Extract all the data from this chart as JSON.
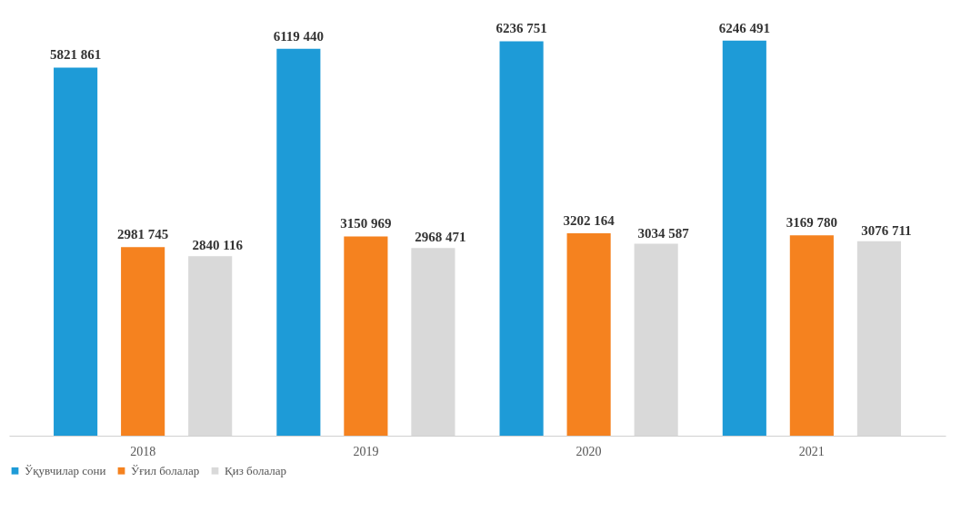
{
  "chart_data": {
    "type": "bar",
    "categories": [
      "2018",
      "2019",
      "2020",
      "2021"
    ],
    "series": [
      {
        "name": "Ўқувчилар сони",
        "color": "#1e9bd7",
        "values": [
          5821861,
          6119440,
          6236751,
          6246491
        ],
        "value_labels": [
          "5821 861",
          "6119 440",
          "6236 751",
          "6246 491"
        ]
      },
      {
        "name": "Ўғил болалар",
        "color": "#f5821f",
        "values": [
          2981745,
          3150969,
          3202164,
          3169780
        ],
        "value_labels": [
          "2981 745",
          "3150 969",
          "3202 164",
          "3169 780"
        ]
      },
      {
        "name": "Қиз болалар",
        "color": "#d9d9d9",
        "values": [
          2840116,
          2968471,
          3034587,
          3076711
        ],
        "value_labels": [
          "2840 116",
          "2968 471",
          "3034 587",
          "3076 711"
        ]
      }
    ],
    "legend": "bottom",
    "grid": false
  }
}
